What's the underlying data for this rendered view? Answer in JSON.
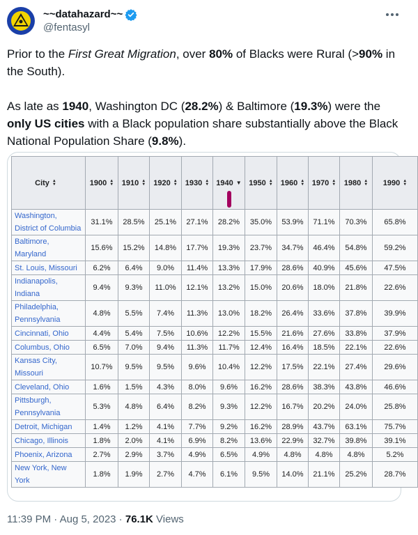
{
  "author": {
    "display_name": "~~datahazard~~",
    "handle": "@fentasyl"
  },
  "tweet": {
    "para1": [
      {
        "t": "Prior to the ",
        "s": ""
      },
      {
        "t": "First Great Migration",
        "s": "i"
      },
      {
        "t": ", over ",
        "s": ""
      },
      {
        "t": "80%",
        "s": "b"
      },
      {
        "t": " of Blacks were Rural (>",
        "s": ""
      },
      {
        "t": "90%",
        "s": "b"
      },
      {
        "t": " in the South).",
        "s": ""
      }
    ],
    "para2": [
      {
        "t": "As late as ",
        "s": ""
      },
      {
        "t": "1940",
        "s": "b"
      },
      {
        "t": ", Washington DC (",
        "s": ""
      },
      {
        "t": "28.2%",
        "s": "b"
      },
      {
        "t": ") & Baltimore (",
        "s": ""
      },
      {
        "t": "19.3%",
        "s": "b"
      },
      {
        "t": ") were the ",
        "s": ""
      },
      {
        "t": "only US cities",
        "s": "b"
      },
      {
        "t": " with a Black population share substantially above the Black National Population Share (",
        "s": ""
      },
      {
        "t": "9.8%",
        "s": "b"
      },
      {
        "t": ").",
        "s": ""
      }
    ]
  },
  "table": {
    "headers": [
      "City",
      "1900",
      "1910",
      "1920",
      "1930",
      "1940",
      "1950",
      "1960",
      "1970",
      "1980",
      "1990"
    ],
    "sorted_header_index": 5,
    "rows": [
      {
        "city": "Washington, District of Columbia",
        "values": [
          "31.1%",
          "28.5%",
          "25.1%",
          "27.1%",
          "28.2%",
          "35.0%",
          "53.9%",
          "71.1%",
          "70.3%",
          "65.8%"
        ]
      },
      {
        "city": "Baltimore, Maryland",
        "values": [
          "15.6%",
          "15.2%",
          "14.8%",
          "17.7%",
          "19.3%",
          "23.7%",
          "34.7%",
          "46.4%",
          "54.8%",
          "59.2%"
        ]
      },
      {
        "city": "St. Louis, Missouri",
        "values": [
          "6.2%",
          "6.4%",
          "9.0%",
          "11.4%",
          "13.3%",
          "17.9%",
          "28.6%",
          "40.9%",
          "45.6%",
          "47.5%"
        ]
      },
      {
        "city": "Indianapolis, Indiana",
        "values": [
          "9.4%",
          "9.3%",
          "11.0%",
          "12.1%",
          "13.2%",
          "15.0%",
          "20.6%",
          "18.0%",
          "21.8%",
          "22.6%"
        ]
      },
      {
        "city": "Philadelphia, Pennsylvania",
        "values": [
          "4.8%",
          "5.5%",
          "7.4%",
          "11.3%",
          "13.0%",
          "18.2%",
          "26.4%",
          "33.6%",
          "37.8%",
          "39.9%"
        ]
      },
      {
        "city": "Cincinnati, Ohio",
        "values": [
          "4.4%",
          "5.4%",
          "7.5%",
          "10.6%",
          "12.2%",
          "15.5%",
          "21.6%",
          "27.6%",
          "33.8%",
          "37.9%"
        ]
      },
      {
        "city": "Columbus, Ohio",
        "values": [
          "6.5%",
          "7.0%",
          "9.4%",
          "11.3%",
          "11.7%",
          "12.4%",
          "16.4%",
          "18.5%",
          "22.1%",
          "22.6%"
        ]
      },
      {
        "city": "Kansas City, Missouri",
        "values": [
          "10.7%",
          "9.5%",
          "9.5%",
          "9.6%",
          "10.4%",
          "12.2%",
          "17.5%",
          "22.1%",
          "27.4%",
          "29.6%"
        ]
      },
      {
        "city": "Cleveland, Ohio",
        "values": [
          "1.6%",
          "1.5%",
          "4.3%",
          "8.0%",
          "9.6%",
          "16.2%",
          "28.6%",
          "38.3%",
          "43.8%",
          "46.6%"
        ]
      },
      {
        "city": "Pittsburgh, Pennsylvania",
        "values": [
          "5.3%",
          "4.8%",
          "6.4%",
          "8.2%",
          "9.3%",
          "12.2%",
          "16.7%",
          "20.2%",
          "24.0%",
          "25.8%"
        ]
      },
      {
        "city": "Detroit, Michigan",
        "values": [
          "1.4%",
          "1.2%",
          "4.1%",
          "7.7%",
          "9.2%",
          "16.2%",
          "28.9%",
          "43.7%",
          "63.1%",
          "75.7%"
        ]
      },
      {
        "city": "Chicago, Illinois",
        "values": [
          "1.8%",
          "2.0%",
          "4.1%",
          "6.9%",
          "8.2%",
          "13.6%",
          "22.9%",
          "32.7%",
          "39.8%",
          "39.1%"
        ]
      },
      {
        "city": "Phoenix, Arizona",
        "values": [
          "2.7%",
          "2.9%",
          "3.7%",
          "4.9%",
          "6.5%",
          "4.9%",
          "4.8%",
          "4.8%",
          "4.8%",
          "5.2%"
        ]
      },
      {
        "city": "New York, New York",
        "values": [
          "1.8%",
          "1.9%",
          "2.7%",
          "4.7%",
          "6.1%",
          "9.5%",
          "14.0%",
          "21.1%",
          "25.2%",
          "28.7%"
        ]
      }
    ]
  },
  "footer": {
    "time": "11:39 PM",
    "sep": " · ",
    "date": "Aug 5, 2023",
    "views_count": "76.1K",
    "views_label": " Views"
  },
  "colors": {
    "link": "#3366cc",
    "header_bg": "#eaecf0",
    "cell_bg": "#f8f9fa",
    "verified": "#1d9bf0",
    "annotation": "#a3005f"
  },
  "icons": {
    "avatar": "hazard-triangle-avatar",
    "verified": "verified-badge-icon",
    "more": "more-dots-icon",
    "sort": "sort-arrows-icon",
    "sort_desc": "sort-desc-icon"
  }
}
